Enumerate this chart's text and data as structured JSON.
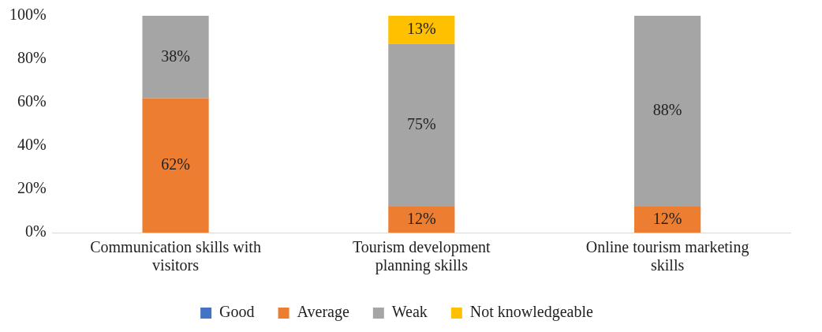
{
  "chart_data": {
    "type": "bar",
    "stacked": true,
    "categories": [
      "Communication skills with visitors",
      "Tourism development planning skills",
      "Online tourism marketing skills"
    ],
    "series": [
      {
        "name": "Good",
        "color": "#4472c4",
        "values": [
          0,
          0,
          0
        ],
        "value_labels": [
          null,
          null,
          null
        ]
      },
      {
        "name": "Average",
        "color": "#ed7d31",
        "values": [
          62,
          12,
          12
        ],
        "value_labels": [
          "62%",
          "12%",
          "12%"
        ]
      },
      {
        "name": "Weak",
        "color": "#a5a5a5",
        "values": [
          38,
          75,
          88
        ],
        "value_labels": [
          "38%",
          "75%",
          "88%"
        ]
      },
      {
        "name": "Not knowledgeable",
        "color": "#ffc000",
        "values": [
          0,
          13,
          0
        ],
        "value_labels": [
          null,
          "13%",
          null
        ]
      }
    ],
    "ylim": [
      0,
      100
    ],
    "yticks": [
      {
        "value": 0,
        "label": "0%"
      },
      {
        "value": 20,
        "label": "20%"
      },
      {
        "value": 40,
        "label": "40%"
      },
      {
        "value": 60,
        "label": "60%"
      },
      {
        "value": 80,
        "label": "80%"
      },
      {
        "value": 100,
        "label": "100%"
      }
    ],
    "grid": false,
    "legend": "bottom"
  }
}
